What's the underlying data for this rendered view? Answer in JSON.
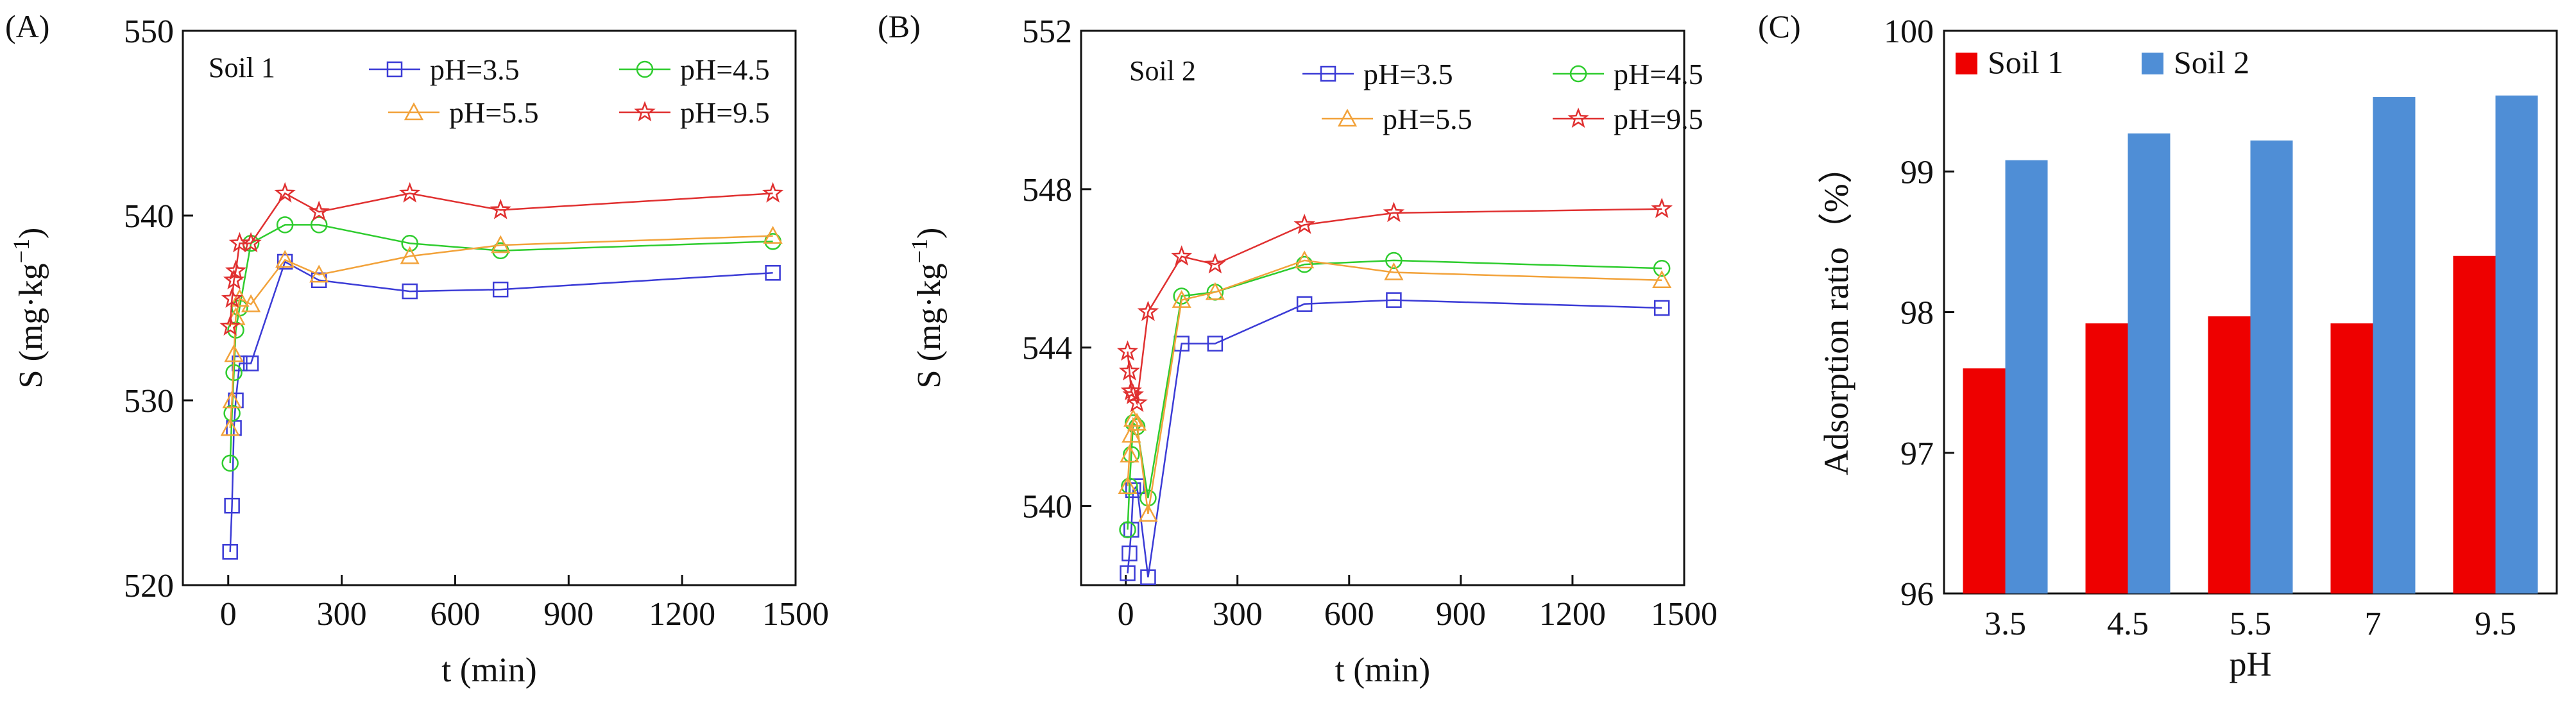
{
  "chart_data": [
    {
      "type": "line",
      "panel_label": "(A)",
      "box_label": "Soil 1",
      "title": "",
      "xlabel": "t (min)",
      "ylabel": "S (mg·kg⁻¹)",
      "xlim": [
        -120,
        1500
      ],
      "ylim": [
        520,
        550
      ],
      "xticks": [
        0,
        300,
        600,
        900,
        1200,
        1500
      ],
      "yticks": [
        520,
        530,
        540,
        550
      ],
      "legend_position": "top-right",
      "series": [
        {
          "name": "pH=3.5",
          "marker": "square",
          "color": "#3b3bd6",
          "x": [
            5,
            10,
            15,
            20,
            30,
            60,
            150,
            240,
            480,
            720,
            1440
          ],
          "y": [
            521.8,
            524.3,
            528.5,
            530,
            532,
            532,
            537.5,
            536.5,
            535.9,
            536,
            536.9
          ]
        },
        {
          "name": "pH=4.5",
          "marker": "circle",
          "color": "#2ecc2e",
          "x": [
            5,
            10,
            15,
            20,
            30,
            60,
            150,
            240,
            480,
            720,
            1440
          ],
          "y": [
            526.6,
            529.3,
            531.5,
            533.8,
            535,
            538.5,
            539.5,
            539.5,
            538.5,
            538.1,
            538.6
          ]
        },
        {
          "name": "pH=5.5",
          "marker": "triangle",
          "color": "#f2a23a",
          "x": [
            5,
            10,
            15,
            20,
            30,
            60,
            150,
            240,
            480,
            720,
            1440
          ],
          "y": [
            528.5,
            530,
            532.5,
            534.5,
            535.5,
            535.2,
            537.6,
            536.8,
            537.8,
            538.4,
            538.9
          ]
        },
        {
          "name": "pH=9.5",
          "marker": "star",
          "color": "#e03030",
          "x": [
            5,
            10,
            15,
            20,
            30,
            60,
            150,
            240,
            480,
            720,
            1440
          ],
          "y": [
            534,
            535.5,
            536.5,
            537,
            538.5,
            538.5,
            541.2,
            540.2,
            541.2,
            540.3,
            541.2
          ]
        }
      ]
    },
    {
      "type": "line",
      "panel_label": "(B)",
      "box_label": "Soil 2",
      "title": "",
      "xlabel": "t (min)",
      "ylabel": "S (mg·kg⁻¹)",
      "xlim": [
        -120,
        1500
      ],
      "ylim": [
        538,
        552
      ],
      "xticks": [
        0,
        300,
        600,
        900,
        1200,
        1500
      ],
      "yticks": [
        540,
        544,
        548,
        552
      ],
      "legend_position": "top-right",
      "series": [
        {
          "name": "pH=3.5",
          "marker": "square",
          "color": "#3b3bd6",
          "x": [
            5,
            10,
            15,
            20,
            30,
            60,
            150,
            240,
            480,
            720,
            1440
          ],
          "y": [
            538.3,
            538.8,
            539.4,
            540.4,
            540.5,
            538.2,
            544.1,
            544.1,
            545.1,
            545.2,
            545
          ]
        },
        {
          "name": "pH=4.5",
          "marker": "circle",
          "color": "#2ecc2e",
          "x": [
            5,
            10,
            15,
            20,
            30,
            60,
            150,
            240,
            480,
            720,
            1440
          ],
          "y": [
            539.4,
            540.5,
            541.3,
            542.1,
            542,
            540.2,
            545.3,
            545.4,
            546.1,
            546.2,
            546
          ]
        },
        {
          "name": "pH=5.5",
          "marker": "triangle",
          "color": "#f2a23a",
          "x": [
            5,
            10,
            15,
            20,
            30,
            60,
            150,
            240,
            480,
            720,
            1440
          ],
          "y": [
            540.5,
            541.3,
            541.8,
            542.2,
            542.1,
            539.8,
            545.2,
            545.4,
            546.2,
            545.9,
            545.7
          ]
        },
        {
          "name": "pH=9.5",
          "marker": "star",
          "color": "#e03030",
          "x": [
            5,
            10,
            15,
            20,
            30,
            60,
            150,
            240,
            480,
            720,
            1440
          ],
          "y": [
            543.9,
            543.4,
            542.9,
            542.8,
            542.6,
            544.9,
            546.3,
            546.1,
            547.1,
            547.4,
            547.5
          ]
        }
      ]
    },
    {
      "type": "bar",
      "panel_label": "(C)",
      "title": "",
      "xlabel": "pH",
      "ylabel": "Adsorption ratio（%）",
      "ylim": [
        96,
        100
      ],
      "yticks": [
        96,
        97,
        98,
        99,
        100
      ],
      "categories": [
        "3.5",
        "4.5",
        "5.5",
        "7",
        "9.5"
      ],
      "legend_position": "top-left",
      "series": [
        {
          "name": "Soil 1",
          "color": "#ee0000",
          "values": [
            97.6,
            97.92,
            97.97,
            97.92,
            98.4
          ]
        },
        {
          "name": "Soil 2",
          "color": "#4f8ed6",
          "values": [
            99.08,
            99.27,
            99.22,
            99.53,
            99.54
          ]
        }
      ]
    }
  ]
}
